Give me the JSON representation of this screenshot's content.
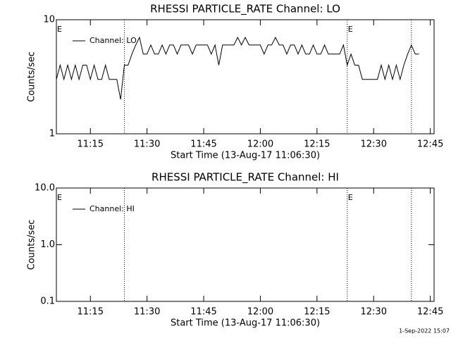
{
  "chart_data": [
    {
      "type": "line",
      "title": "RHESSI PARTICLE_RATE Channel: LO",
      "xlabel": "Start Time (13-Aug-17 11:06:30)",
      "ylabel": "Counts/sec",
      "log": true,
      "ylim": [
        1,
        10
      ],
      "yticks": [
        1,
        10
      ],
      "xlim": [
        "11:06",
        "12:46"
      ],
      "xticks": [
        "11:15",
        "11:30",
        "11:45",
        "12:00",
        "12:15",
        "12:30",
        "12:45"
      ],
      "vlines": [
        "11:24",
        "12:23",
        "12:40"
      ],
      "annotations": [
        {
          "text": "E",
          "x": "11:06"
        },
        {
          "text": "E",
          "x": "12:23"
        }
      ],
      "x": [
        "11:06",
        "11:07",
        "11:08",
        "11:09",
        "11:10",
        "11:11",
        "11:12",
        "11:13",
        "11:14",
        "11:15",
        "11:16",
        "11:17",
        "11:18",
        "11:19",
        "11:20",
        "11:21",
        "11:22",
        "11:23",
        "11:24",
        "11:25",
        "11:26",
        "11:27",
        "11:28",
        "11:29",
        "11:30",
        "11:31",
        "11:32",
        "11:33",
        "11:34",
        "11:35",
        "11:36",
        "11:37",
        "11:38",
        "11:39",
        "11:40",
        "11:41",
        "11:42",
        "11:43",
        "11:44",
        "11:45",
        "11:46",
        "11:47",
        "11:48",
        "11:49",
        "11:50",
        "11:51",
        "11:52",
        "11:53",
        "11:54",
        "11:55",
        "11:56",
        "11:57",
        "11:58",
        "11:59",
        "12:00",
        "12:01",
        "12:02",
        "12:03",
        "12:04",
        "12:05",
        "12:06",
        "12:07",
        "12:08",
        "12:09",
        "12:10",
        "12:11",
        "12:12",
        "12:13",
        "12:14",
        "12:15",
        "12:16",
        "12:17",
        "12:18",
        "12:19",
        "12:20",
        "12:21",
        "12:22",
        "12:23",
        "12:24",
        "12:25",
        "12:26",
        "12:27",
        "12:28",
        "12:29",
        "12:30",
        "12:31",
        "12:32",
        "12:33",
        "12:34",
        "12:35",
        "12:36",
        "12:37",
        "12:38",
        "12:39",
        "12:40",
        "12:41",
        "12:42"
      ],
      "series": [
        {
          "name": "Channel: LO",
          "color": "#000000",
          "values": [
            3,
            4,
            3,
            4,
            3,
            4,
            3,
            4,
            4,
            3,
            4,
            3,
            3,
            4,
            3,
            3,
            3,
            2,
            4,
            4,
            5,
            6,
            7,
            5,
            5,
            6,
            5,
            5,
            6,
            5,
            6,
            6,
            5,
            6,
            6,
            6,
            5,
            6,
            6,
            6,
            6,
            5,
            6,
            4,
            6,
            6,
            6,
            6,
            7,
            6,
            7,
            6,
            6,
            6,
            6,
            5,
            6,
            6,
            7,
            6,
            6,
            5,
            6,
            6,
            5,
            6,
            5,
            5,
            6,
            5,
            5,
            6,
            5,
            5,
            5,
            5,
            6,
            4,
            5,
            4,
            4,
            3,
            3,
            3,
            3,
            3,
            4,
            3,
            4,
            3,
            4,
            3,
            4,
            5,
            6,
            5,
            5
          ]
        }
      ]
    },
    {
      "type": "line",
      "title": "RHESSI PARTICLE_RATE Channel: HI",
      "xlabel": "Start Time (13-Aug-17 11:06:30)",
      "ylabel": "Counts/sec",
      "log": true,
      "ylim": [
        0.1,
        10
      ],
      "yticks": [
        0.1,
        {
          "value": 1,
          "label": "1.0"
        },
        {
          "value": 10,
          "label": "10.0"
        }
      ],
      "xlim": [
        "11:06",
        "12:46"
      ],
      "xticks": [
        "11:15",
        "11:30",
        "11:45",
        "12:00",
        "12:15",
        "12:30",
        "12:45"
      ],
      "vlines": [
        "11:24",
        "12:23",
        "12:40"
      ],
      "annotations": [
        {
          "text": "E",
          "x": "11:06"
        },
        {
          "text": "E",
          "x": "12:23"
        }
      ],
      "x": [],
      "series": [
        {
          "name": "Channel: HI",
          "color": "#000000",
          "values": []
        }
      ]
    }
  ],
  "footer": "1-Sep-2022 15:07"
}
